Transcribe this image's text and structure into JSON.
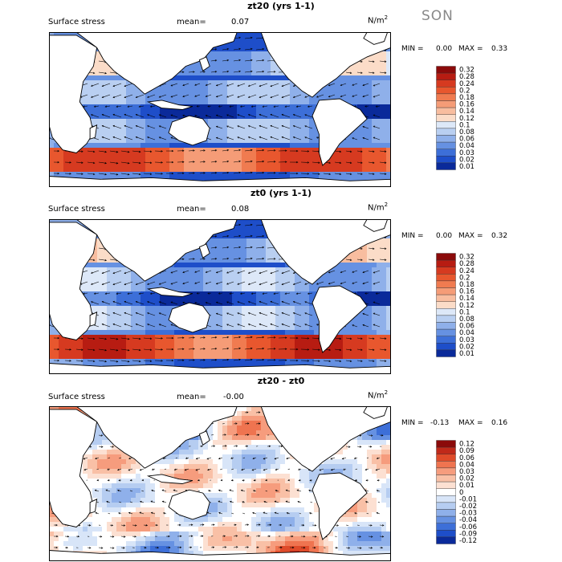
{
  "season": "SON",
  "panels": [
    {
      "title": "zt20 (yrs 1-1)",
      "label": "Surface stress",
      "mean_label": "mean=",
      "mean_value": "0.07",
      "unit_base": "N/m",
      "unit_exp": "2",
      "min_label": "MIN =",
      "min_value": "0.00",
      "max_label": "MAX =",
      "max_value": "0.33",
      "colorbar": [
        "0.32",
        "0.28",
        "0.24",
        "0.2",
        "0.18",
        "0.16",
        "0.14",
        "0.12",
        "0.1",
        "0.08",
        "0.06",
        "0.04",
        "0.03",
        "0.02",
        "0.01"
      ]
    },
    {
      "title": "zt0 (yrs 1-1)",
      "label": "Surface stress",
      "mean_label": "mean=",
      "mean_value": "0.08",
      "unit_base": "N/m",
      "unit_exp": "2",
      "min_label": "MIN =",
      "min_value": "0.00",
      "max_label": "MAX =",
      "max_value": "0.32",
      "colorbar": [
        "0.32",
        "0.28",
        "0.24",
        "0.2",
        "0.18",
        "0.16",
        "0.14",
        "0.12",
        "0.1",
        "0.08",
        "0.06",
        "0.04",
        "0.03",
        "0.02",
        "0.01"
      ]
    },
    {
      "title": "zt20 - zt0",
      "label": "Surface stress",
      "mean_label": "mean=",
      "mean_value": "-0.00",
      "unit_base": "N/m",
      "unit_exp": "2",
      "min_label": "MIN =",
      "min_value": "-0.13",
      "max_label": "MAX =",
      "max_value": "0.16",
      "colorbar": [
        "0.12",
        "0.09",
        "0.06",
        "0.04",
        "0.03",
        "0.02",
        "0.01",
        "0",
        "-0.01",
        "-0.02",
        "-0.03",
        "-0.04",
        "-0.06",
        "-0.09",
        "-0.12"
      ]
    }
  ],
  "colors": {
    "abs_ramp": [
      "#8b0a0a",
      "#b71c12",
      "#d63a20",
      "#e8572e",
      "#f07b50",
      "#f59c77",
      "#f8bd9f",
      "#fbdcc8",
      "#dde8f8",
      "#b9cff1",
      "#8fb0ea",
      "#6691e2",
      "#3d6fd8",
      "#1e4ec9",
      "#0a2a9a"
    ],
    "diff_ramp": [
      "#8b0a0a",
      "#c0291a",
      "#df4b2a",
      "#ef7450",
      "#f69c7d",
      "#f9c0a6",
      "#fce0d2",
      "#ffffff",
      "#d8e5f8",
      "#b6cdf1",
      "#8fb0ea",
      "#6691e2",
      "#3d6fd8",
      "#1e4ec9",
      "#0a2a9a"
    ]
  }
}
